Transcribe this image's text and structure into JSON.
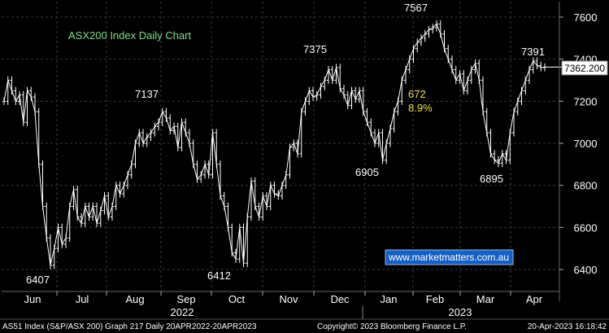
{
  "chart_data": {
    "type": "line",
    "chart_style": "ohlc-bars",
    "title": "ASX200 Index Daily Chart",
    "y_ticks": [
      6400,
      6600,
      6800,
      7000,
      7200,
      7400,
      7600
    ],
    "ylim": [
      6330,
      7680
    ],
    "last_value_label": "7362.200",
    "last_value": 7362.2,
    "months": [
      "Jun",
      "Jul",
      "Aug",
      "Sep",
      "Oct",
      "Nov",
      "Dec",
      "Jan",
      "Feb",
      "Mar",
      "Apr"
    ],
    "years": [
      "2022",
      "2023"
    ],
    "series": [
      {
        "values": [
          7200,
          7300,
          7250,
          7200,
          7230,
          7100,
          7250,
          7220,
          7150,
          6900,
          6700,
          6550,
          6420,
          6500,
          6600,
          6520,
          6550,
          6700,
          6780,
          6650,
          6620,
          6700,
          6650,
          6700,
          6620,
          6680,
          6750,
          6650,
          6700,
          6800,
          6760,
          6800,
          6850,
          6900,
          7000,
          7050,
          7000,
          7030,
          7050,
          7080,
          7100,
          7150,
          7120,
          7060,
          7080,
          6980,
          7100,
          7050,
          7000,
          6900,
          6830,
          6850,
          6900,
          6850,
          7050,
          6900,
          6750,
          6700,
          6600,
          6480,
          6450,
          6600,
          6430,
          6650,
          6820,
          6700,
          6650,
          6750,
          6700,
          6800,
          6760,
          6750,
          6800,
          6850,
          6980,
          7000,
          6950,
          7150,
          7200,
          7250,
          7220,
          7230,
          7270,
          7300,
          7350,
          7300,
          7360,
          7260,
          7230,
          7180,
          7250,
          7210,
          7250,
          7150,
          7100,
          7050,
          7000,
          7050,
          6920,
          7000,
          7070,
          7150,
          7200,
          7300,
          7350,
          7400,
          7450,
          7480,
          7500,
          7520,
          7540,
          7550,
          7567,
          7520,
          7450,
          7400,
          7350,
          7300,
          7330,
          7250,
          7300,
          7350,
          7380,
          7300,
          7150,
          7050,
          6950,
          6920,
          6905,
          6950,
          6920,
          7050,
          7150,
          7200,
          7250,
          7300,
          7350,
          7391,
          7370,
          7360,
          7362
        ],
        "data_labels": [
          {
            "text": "6407",
            "value": 6407
          },
          {
            "text": "7137",
            "value": 7137
          },
          {
            "text": "6412",
            "value": 6412
          },
          {
            "text": "7375",
            "value": 7375
          },
          {
            "text": "6905",
            "value": 6905
          },
          {
            "text": "7567",
            "value": 7567
          },
          {
            "text": "6895",
            "value": 6895
          },
          {
            "text": "7391",
            "value": 7391
          }
        ]
      }
    ],
    "annotations": [
      {
        "text": "672",
        "color": "#f0e040"
      },
      {
        "text": "8.9%",
        "color": "#f0e040"
      }
    ],
    "watermark": "www.marketmatters.com.au",
    "grid": "dashed"
  },
  "colors": {
    "background": "#000000",
    "line": "#ffffff",
    "title": "#7ce08a",
    "annotation": "#f0e040",
    "grid": "#3a3a3a",
    "watermark_bg": "#1560c4"
  },
  "footer": {
    "left": "AS51 Index (S&P/ASX 200) Graph 217  Daily 20APR2022-20APR2023",
    "center": "Copyright© 2023 Bloomberg Finance L.P.",
    "right": "20-Apr-2023 16:18:42"
  }
}
